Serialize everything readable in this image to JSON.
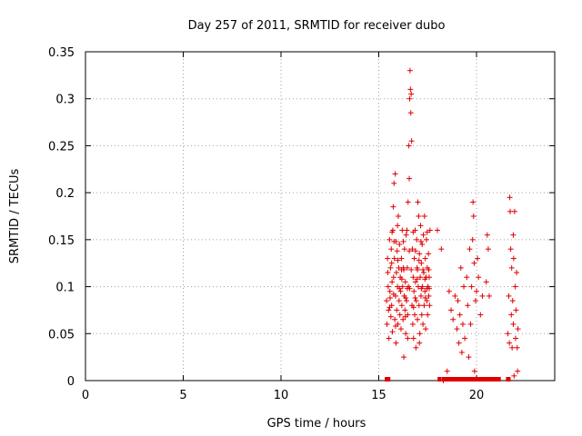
{
  "chart_data": {
    "type": "scatter",
    "title": "Day 257 of 2011, SRMTID for receiver dubo",
    "xlabel": "GPS time / hours",
    "ylabel": "SRMTID / TECUs",
    "xlim": [
      0,
      24
    ],
    "ylim": [
      0,
      0.35
    ],
    "xticks": [
      "0",
      "5",
      "10",
      "15",
      "20"
    ],
    "yticks": [
      "0",
      "0.05",
      "0.1",
      "0.15",
      "0.2",
      "0.25",
      "0.3",
      "0.35"
    ],
    "grid": true,
    "marker": "plus",
    "colors": {
      "series": "#e00000",
      "grid": "#a0a0a0",
      "axis": "#000000"
    },
    "series": [
      {
        "points": [
          [
            15.4,
            0.085
          ],
          [
            15.42,
            0.06
          ],
          [
            15.45,
            0.13
          ],
          [
            15.48,
            0.1
          ],
          [
            15.5,
            0.075
          ],
          [
            15.52,
            0.045
          ],
          [
            15.55,
            0.15
          ],
          [
            15.57,
            0.095
          ],
          [
            15.6,
            0.12
          ],
          [
            15.62,
            0.068
          ],
          [
            15.64,
            0.14
          ],
          [
            15.66,
            0.08
          ],
          [
            15.68,
            0.105
          ],
          [
            15.7,
            0.052
          ],
          [
            15.72,
            0.16
          ],
          [
            15.74,
            0.185
          ],
          [
            15.76,
            0.11
          ],
          [
            15.78,
            0.21
          ],
          [
            15.8,
            0.13
          ],
          [
            15.82,
            0.065
          ],
          [
            15.84,
            0.22
          ],
          [
            15.86,
            0.09
          ],
          [
            15.88,
            0.148
          ],
          [
            15.9,
            0.115
          ],
          [
            15.92,
            0.075
          ],
          [
            15.94,
            0.138
          ],
          [
            15.96,
            0.1
          ],
          [
            15.98,
            0.06
          ],
          [
            16.0,
            0.175
          ],
          [
            16.02,
            0.12
          ],
          [
            16.04,
            0.085
          ],
          [
            16.06,
            0.145
          ],
          [
            16.08,
            0.07
          ],
          [
            16.1,
            0.11
          ],
          [
            16.12,
            0.095
          ],
          [
            16.14,
            0.055
          ],
          [
            16.16,
            0.13
          ],
          [
            16.18,
            0.08
          ],
          [
            16.2,
            0.16
          ],
          [
            16.22,
            0.1
          ],
          [
            16.24,
            0.065
          ],
          [
            16.26,
            0.12
          ],
          [
            16.28,
            0.025
          ],
          [
            16.3,
            0.09
          ],
          [
            16.32,
            0.14
          ],
          [
            16.34,
            0.075
          ],
          [
            16.36,
            0.105
          ],
          [
            16.38,
            0.05
          ],
          [
            16.4,
            0.155
          ],
          [
            16.42,
            0.085
          ],
          [
            16.44,
            0.16
          ],
          [
            16.46,
            0.12
          ],
          [
            16.48,
            0.07
          ],
          [
            16.5,
            0.19
          ],
          [
            16.52,
            0.1
          ],
          [
            16.54,
            0.25
          ],
          [
            16.56,
            0.215
          ],
          [
            16.58,
            0.3
          ],
          [
            16.6,
            0.33
          ],
          [
            16.62,
            0.31
          ],
          [
            16.64,
            0.285
          ],
          [
            16.66,
            0.305
          ],
          [
            16.68,
            0.255
          ],
          [
            16.7,
            0.08
          ],
          [
            16.72,
            0.14
          ],
          [
            16.74,
            0.06
          ],
          [
            16.76,
            0.11
          ],
          [
            16.78,
            0.045
          ],
          [
            16.8,
            0.095
          ],
          [
            16.82,
            0.13
          ],
          [
            16.84,
            0.07
          ],
          [
            16.86,
            0.16
          ],
          [
            16.88,
            0.105
          ],
          [
            16.9,
            0.035
          ],
          [
            16.92,
            0.085
          ],
          [
            16.94,
            0.15
          ],
          [
            16.96,
            0.12
          ],
          [
            16.98,
            0.065
          ],
          [
            17.0,
            0.19
          ],
          [
            17.02,
            0.1
          ],
          [
            17.04,
            0.175
          ],
          [
            17.06,
            0.08
          ],
          [
            17.08,
            0.135
          ],
          [
            17.1,
            0.05
          ],
          [
            17.12,
            0.11
          ],
          [
            17.14,
            0.165
          ],
          [
            17.16,
            0.09
          ],
          [
            17.18,
            0.125
          ],
          [
            17.2,
            0.07
          ],
          [
            17.22,
            0.145
          ],
          [
            17.24,
            0.1
          ],
          [
            17.26,
            0.06
          ],
          [
            17.28,
            0.155
          ],
          [
            17.3,
            0.115
          ],
          [
            17.32,
            0.08
          ],
          [
            17.34,
            0.175
          ],
          [
            17.36,
            0.095
          ],
          [
            17.38,
            0.13
          ],
          [
            17.4,
            0.055
          ],
          [
            17.42,
            0.11
          ],
          [
            17.44,
            0.15
          ],
          [
            17.46,
            0.085
          ],
          [
            17.48,
            0.12
          ],
          [
            17.5,
            0.07
          ],
          [
            17.52,
            0.1
          ],
          [
            17.54,
            0.135
          ],
          [
            17.56,
            0.09
          ],
          [
            17.58,
            0.11
          ],
          [
            17.6,
            0.08
          ],
          [
            17.62,
            0.16
          ],
          [
            15.46,
            0.115
          ],
          [
            15.56,
            0.078
          ],
          [
            15.66,
            0.125
          ],
          [
            15.76,
            0.092
          ],
          [
            15.86,
            0.058
          ],
          [
            15.96,
            0.165
          ],
          [
            16.06,
            0.098
          ],
          [
            16.16,
            0.118
          ],
          [
            16.26,
            0.148
          ],
          [
            16.36,
            0.068
          ],
          [
            16.46,
            0.098
          ],
          [
            16.56,
            0.138
          ],
          [
            16.66,
            0.118
          ],
          [
            16.76,
            0.158
          ],
          [
            16.86,
            0.088
          ],
          [
            16.96,
            0.108
          ],
          [
            17.06,
            0.128
          ],
          [
            17.16,
            0.148
          ],
          [
            17.26,
            0.118
          ],
          [
            17.36,
            0.108
          ],
          [
            17.46,
            0.098
          ],
          [
            17.56,
            0.118
          ],
          [
            15.58,
            0.088
          ],
          [
            15.78,
            0.148
          ],
          [
            15.98,
            0.128
          ],
          [
            16.18,
            0.108
          ],
          [
            16.38,
            0.088
          ],
          [
            16.58,
            0.098
          ],
          [
            16.78,
            0.078
          ],
          [
            16.98,
            0.118
          ],
          [
            17.18,
            0.098
          ],
          [
            17.38,
            0.088
          ],
          [
            17.58,
            0.098
          ],
          [
            15.68,
            0.158
          ],
          [
            16.28,
            0.118
          ],
          [
            16.88,
            0.138
          ],
          [
            17.48,
            0.158
          ],
          [
            16.48,
            0.045
          ],
          [
            17.08,
            0.04
          ],
          [
            15.88,
            0.04
          ],
          [
            18.0,
            0.16
          ],
          [
            18.2,
            0.14
          ],
          [
            18.3,
            0.0
          ],
          [
            18.5,
            0.01
          ],
          [
            18.6,
            0.095
          ],
          [
            18.7,
            0.075
          ],
          [
            18.8,
            0.065
          ],
          [
            18.9,
            0.09
          ],
          [
            19.0,
            0.055
          ],
          [
            19.05,
            0.085
          ],
          [
            19.1,
            0.04
          ],
          [
            19.15,
            0.07
          ],
          [
            19.2,
            0.12
          ],
          [
            19.25,
            0.03
          ],
          [
            19.3,
            0.06
          ],
          [
            19.35,
            0.1
          ],
          [
            19.4,
            0.045
          ],
          [
            19.5,
            0.11
          ],
          [
            19.55,
            0.08
          ],
          [
            19.6,
            0.025
          ],
          [
            19.65,
            0.14
          ],
          [
            19.7,
            0.06
          ],
          [
            19.75,
            0.1
          ],
          [
            19.8,
            0.15
          ],
          [
            19.82,
            0.19
          ],
          [
            19.85,
            0.175
          ],
          [
            19.88,
            0.125
          ],
          [
            19.9,
            0.01
          ],
          [
            19.95,
            0.085
          ],
          [
            20.0,
            0.095
          ],
          [
            20.05,
            0.13
          ],
          [
            20.1,
            0.11
          ],
          [
            20.2,
            0.07
          ],
          [
            20.3,
            0.09
          ],
          [
            20.5,
            0.105
          ],
          [
            20.55,
            0.155
          ],
          [
            20.6,
            0.14
          ],
          [
            20.65,
            0.09
          ],
          [
            21.6,
            0.05
          ],
          [
            21.65,
            0.09
          ],
          [
            21.7,
            0.195
          ],
          [
            21.72,
            0.18
          ],
          [
            21.75,
            0.14
          ],
          [
            21.78,
            0.07
          ],
          [
            21.8,
            0.12
          ],
          [
            21.82,
            0.035
          ],
          [
            21.85,
            0.085
          ],
          [
            21.88,
            0.06
          ],
          [
            21.9,
            0.13
          ],
          [
            21.92,
            0.005
          ],
          [
            21.95,
            0.18
          ],
          [
            21.98,
            0.1
          ],
          [
            22.0,
            0.045
          ],
          [
            22.02,
            0.075
          ],
          [
            22.05,
            0.115
          ],
          [
            22.08,
            0.035
          ],
          [
            22.1,
            0.01
          ],
          [
            22.12,
            0.055
          ],
          [
            21.68,
            0.04
          ],
          [
            21.88,
            0.155
          ]
        ]
      }
    ],
    "zero_band": [
      15.4,
      15.45,
      15.5,
      18.1,
      18.3,
      18.45,
      18.6,
      18.75,
      18.9,
      19.05,
      19.2,
      19.35,
      19.5,
      19.65,
      19.8,
      19.95,
      20.1,
      20.25,
      20.4,
      20.55,
      20.7,
      20.85,
      21.0,
      21.15,
      21.6,
      21.65
    ]
  }
}
